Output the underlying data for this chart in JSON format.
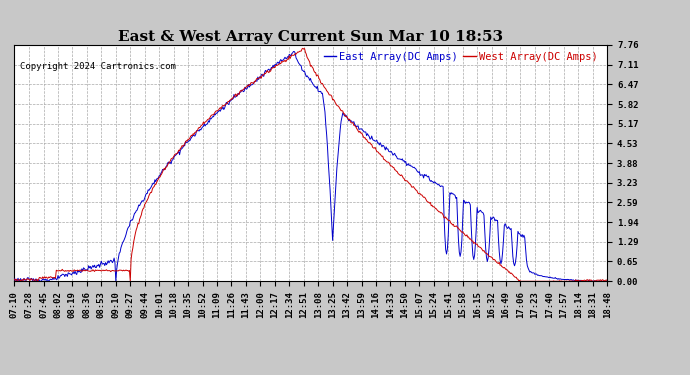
{
  "title": "East & West Array Current Sun Mar 10 18:53",
  "copyright": "Copyright 2024 Cartronics.com",
  "legend_east": "East Array(DC Amps)",
  "legend_west": "West Array(DC Amps)",
  "east_color": "#0000cc",
  "west_color": "#cc0000",
  "bg_color": "#c8c8c8",
  "plot_bg_color": "#ffffff",
  "grid_color": "#aaaaaa",
  "yticks": [
    0.0,
    0.65,
    1.29,
    1.94,
    2.59,
    3.23,
    3.88,
    4.53,
    5.17,
    5.82,
    6.47,
    7.11,
    7.76
  ],
  "ymax": 7.76,
  "ymin": 0.0,
  "title_fontsize": 11,
  "tick_fontsize": 6.5,
  "legend_fontsize": 7.5,
  "copyright_fontsize": 6.5
}
